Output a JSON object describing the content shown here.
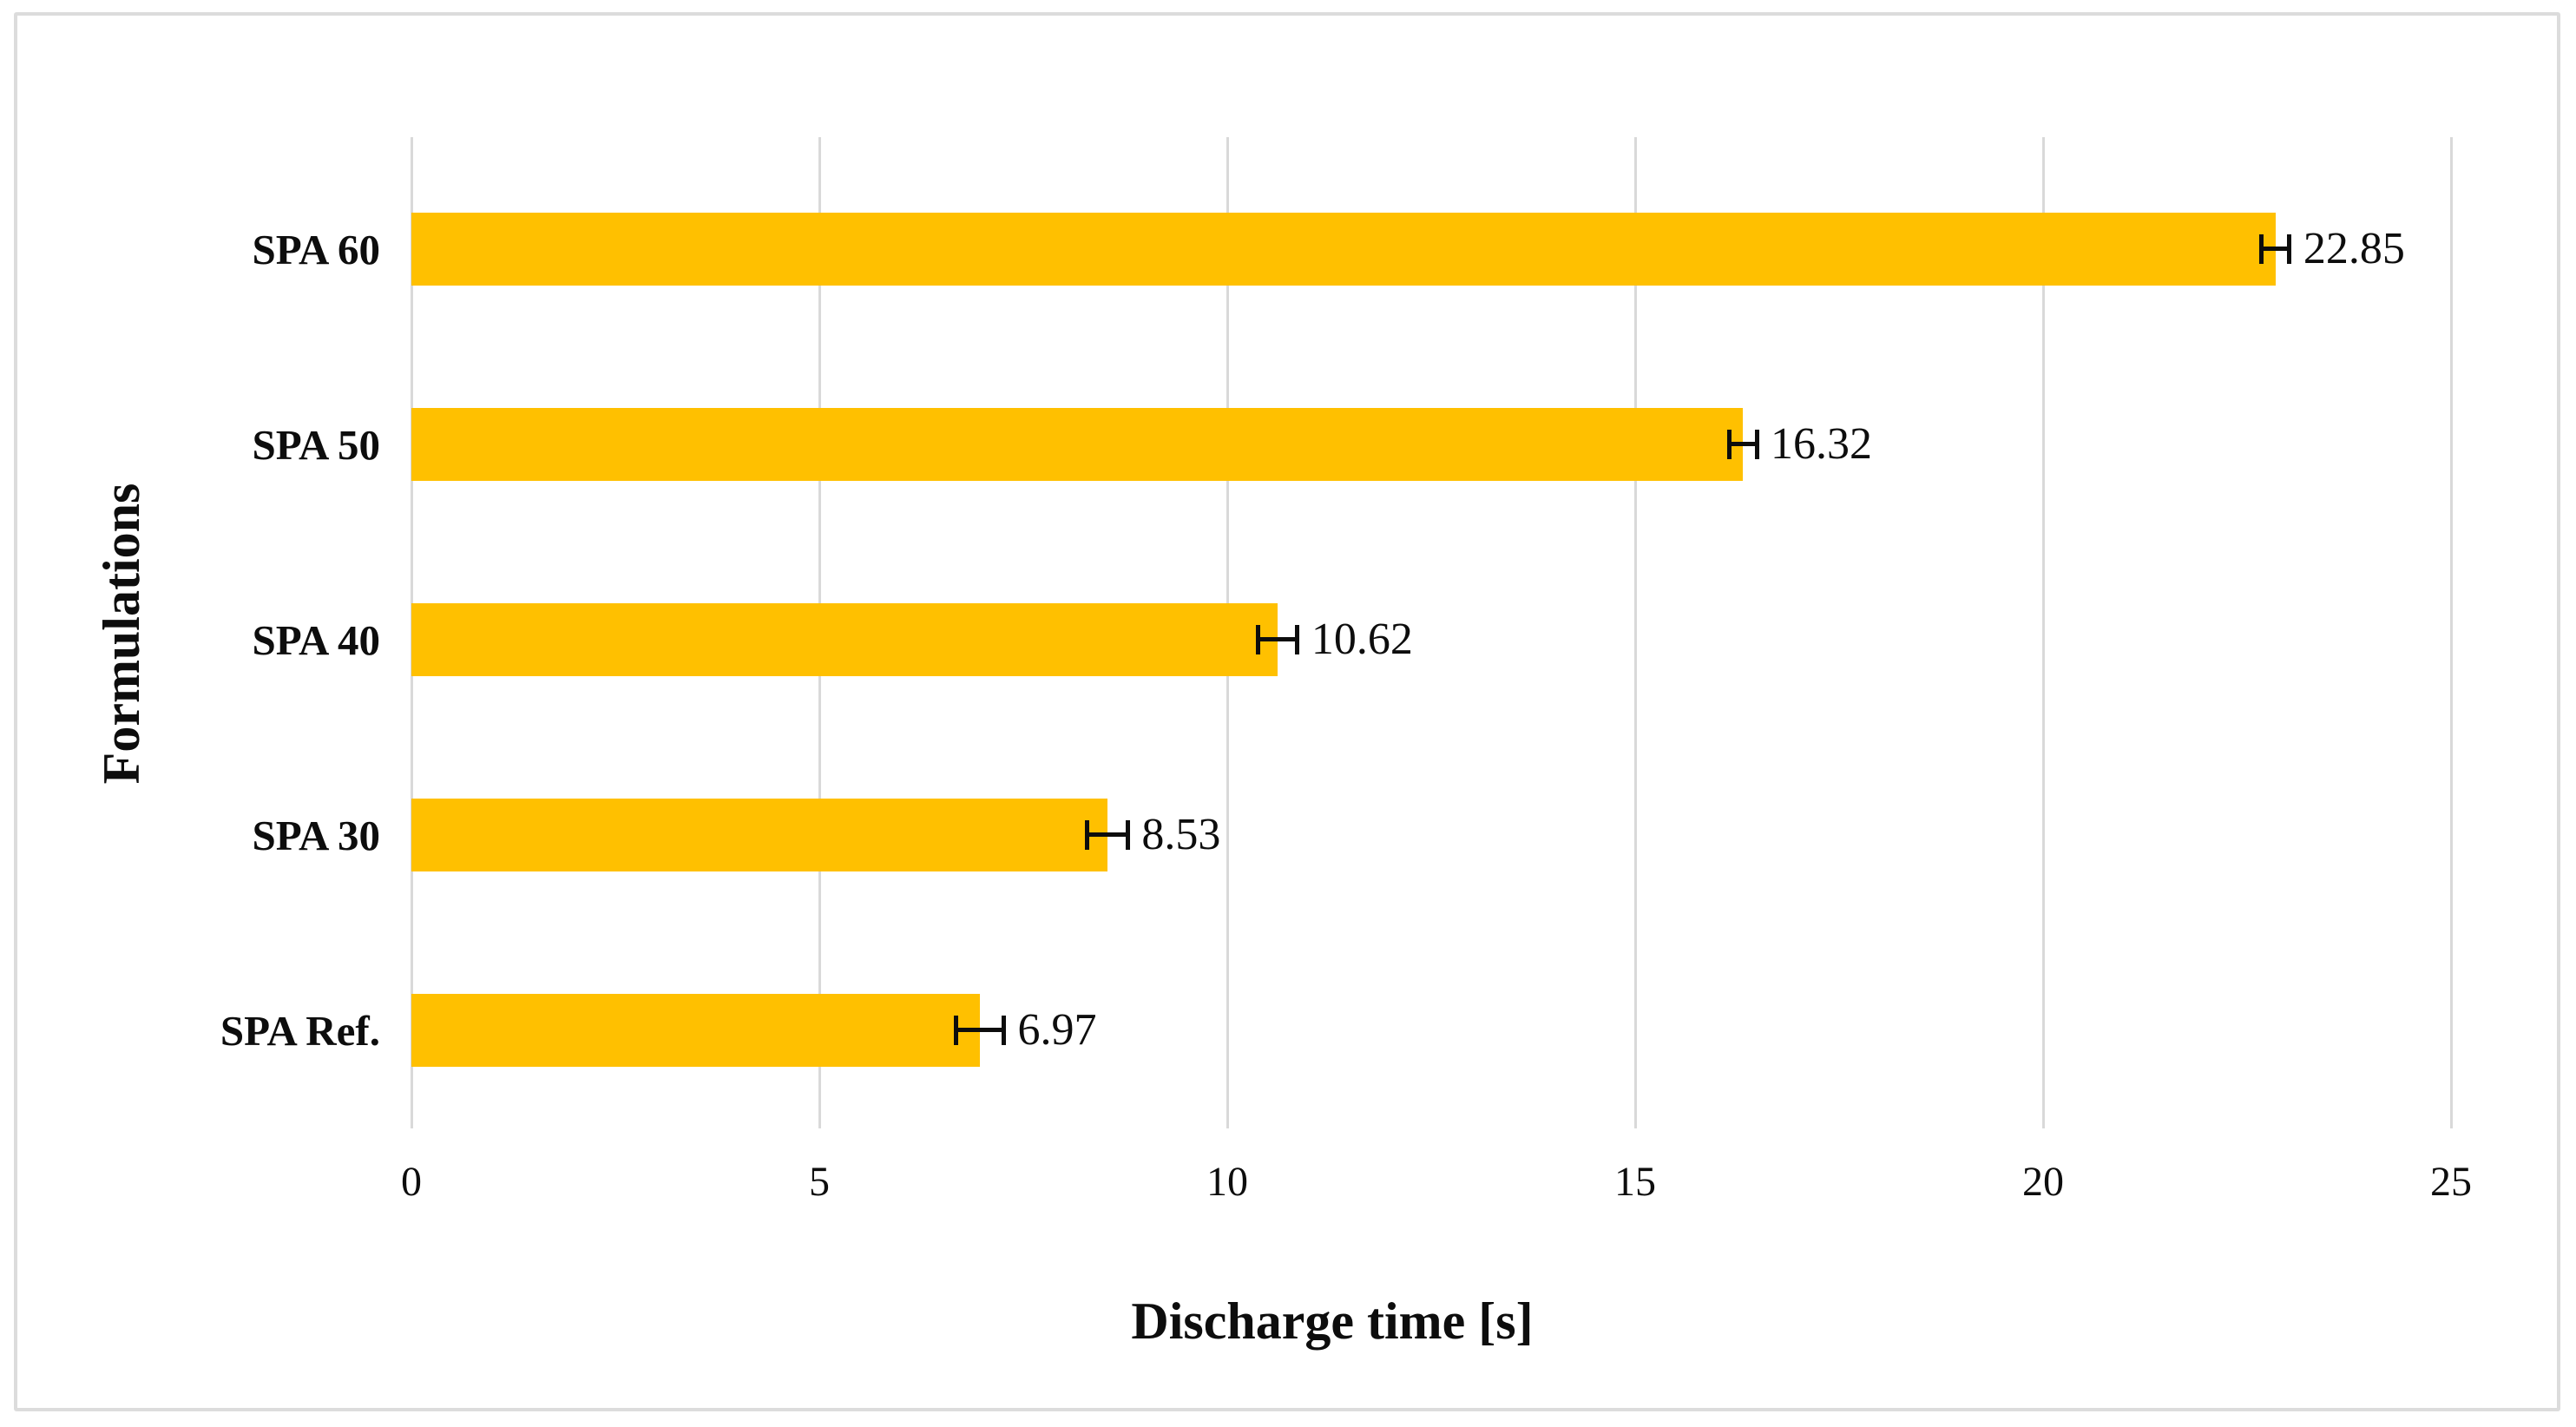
{
  "figure": {
    "background_color": "#ffffff",
    "border_color": "#dcdcdc"
  },
  "chart_data": {
    "type": "bar",
    "orientation": "horizontal",
    "title": "",
    "xlabel": "Discharge time [s]",
    "ylabel": "Formulations",
    "categories": [
      "SPA 60",
      "SPA 50",
      "SPA 40",
      "SPA 30",
      "SPA Ref."
    ],
    "values": [
      22.85,
      16.32,
      10.62,
      8.53,
      6.97
    ],
    "value_labels": [
      "22.85",
      "16.32",
      "10.62",
      "8.53",
      "6.97"
    ],
    "error_bars": [
      0.17,
      0.17,
      0.24,
      0.25,
      0.29
    ],
    "xlim": [
      0,
      25
    ],
    "xticks": [
      0,
      5,
      10,
      15,
      20,
      25
    ],
    "xtick_labels": [
      "0",
      "5",
      "10",
      "15",
      "20",
      "25"
    ],
    "grid": "vertical",
    "legend": "none",
    "bar_color": "#ffc000",
    "gridline_color": "#d9d9d9",
    "error_bar_color": "#0d0d0d",
    "text_color": "#0d0d0d"
  }
}
